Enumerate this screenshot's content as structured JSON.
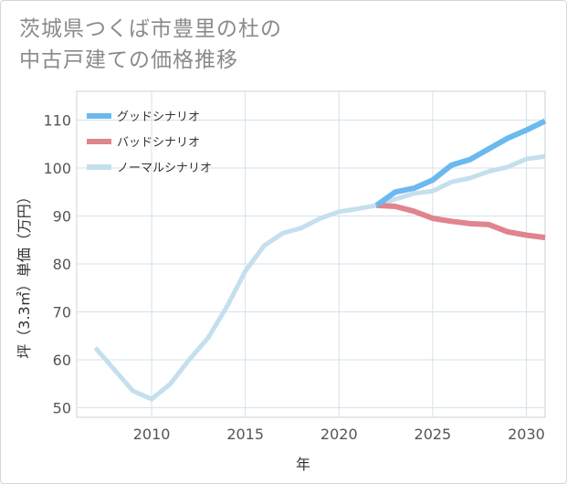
{
  "title_line1": "茨城県つくば市豊里の杜の",
  "title_line2": "中古戸建ての価格推移",
  "chart_data": {
    "type": "line",
    "xlabel": "年",
    "ylabel": "坪（3.3㎡）単価（万円）",
    "xlim": [
      2006,
      2031
    ],
    "ylim": [
      48,
      116
    ],
    "xticks": [
      2010,
      2015,
      2020,
      2025,
      2030
    ],
    "yticks": [
      50,
      60,
      70,
      80,
      90,
      100,
      110
    ],
    "grid": true,
    "legend_position": "top-left",
    "series": [
      {
        "name": "グッドシナリオ",
        "color": "#6bb9ee",
        "x": [
          2022,
          2023,
          2024,
          2025,
          2026,
          2027,
          2028,
          2029,
          2030,
          2031
        ],
        "y": [
          92.2,
          95.0,
          95.8,
          97.5,
          100.6,
          101.8,
          104.0,
          106.2,
          107.9,
          109.8
        ]
      },
      {
        "name": "バッドシナリオ",
        "color": "#e0848e",
        "x": [
          2022,
          2023,
          2024,
          2025,
          2026,
          2027,
          2028,
          2029,
          2030,
          2031
        ],
        "y": [
          92.2,
          92.0,
          91.0,
          89.5,
          88.9,
          88.4,
          88.2,
          86.7,
          86.0,
          85.5
        ]
      },
      {
        "name": "ノーマルシナリオ",
        "color": "#c4dfee",
        "x": [
          2007,
          2008,
          2009,
          2010,
          2011,
          2012,
          2013,
          2014,
          2015,
          2016,
          2017,
          2018,
          2019,
          2020,
          2021,
          2022,
          2023,
          2024,
          2025,
          2026,
          2027,
          2028,
          2029,
          2030,
          2031
        ],
        "y": [
          62.5,
          58.0,
          53.5,
          51.8,
          55.0,
          60.0,
          64.5,
          71.0,
          78.5,
          83.8,
          86.4,
          87.5,
          89.5,
          90.9,
          91.5,
          92.2,
          93.5,
          94.7,
          95.2,
          97.1,
          97.9,
          99.3,
          100.2,
          101.9,
          102.4
        ]
      }
    ]
  }
}
